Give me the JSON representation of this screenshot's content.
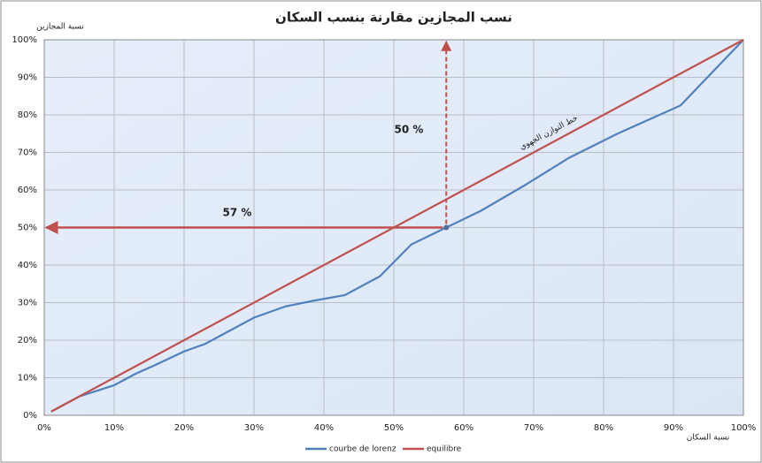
{
  "chart_data": {
    "type": "line",
    "title": "نسب المجازين مقارنة بنسب السكان",
    "y_label": "نسبة المجازين",
    "x_label": "نسبة السكان",
    "series": [
      {
        "name": "courbe de lorenz",
        "color": "#4f81bd",
        "x": [
          1,
          5,
          10,
          13,
          16,
          20,
          23,
          26,
          30,
          34.5,
          38.5,
          43,
          48,
          52.5,
          57.5,
          62.5,
          68.5,
          75,
          82,
          91,
          100
        ],
        "values": [
          1,
          5,
          8,
          11,
          13.5,
          17,
          19,
          22,
          26,
          29,
          30.5,
          32,
          37,
          45.5,
          50,
          54.5,
          61,
          68.5,
          75,
          82.5,
          100
        ]
      },
      {
        "name": "equilibre",
        "color": "#c0504d",
        "x": [
          1,
          100
        ],
        "values": [
          1,
          100
        ]
      }
    ],
    "annotations": [
      "50 %",
      "57 %",
      "خط التوازن الجهوي"
    ],
    "xlim": [
      0,
      100
    ],
    "ylim": [
      0,
      100
    ],
    "xticks": [
      {
        "value": 0,
        "label": "0%"
      },
      {
        "value": 10,
        "label": "10%"
      },
      {
        "value": 20,
        "label": "20%"
      },
      {
        "value": 30,
        "label": "30%"
      },
      {
        "value": 40,
        "label": "40%"
      },
      {
        "value": 50,
        "label": "50%"
      },
      {
        "value": 60,
        "label": "60%"
      },
      {
        "value": 70,
        "label": "70%"
      },
      {
        "value": 80,
        "label": "80%"
      },
      {
        "value": 90,
        "label": "90%"
      },
      {
        "value": 100,
        "label": "100%"
      }
    ],
    "yticks": [
      {
        "value": 0,
        "label": "0%"
      },
      {
        "value": 10,
        "label": "10%"
      },
      {
        "value": 20,
        "label": "20%"
      },
      {
        "value": 30,
        "label": "30%"
      },
      {
        "value": 40,
        "label": "40%"
      },
      {
        "value": 50,
        "label": "50%"
      },
      {
        "value": 60,
        "label": "60%"
      },
      {
        "value": 70,
        "label": "70%"
      },
      {
        "value": 80,
        "label": "80%"
      },
      {
        "value": 90,
        "label": "90%"
      },
      {
        "value": 100,
        "label": "100%"
      }
    ],
    "grid": true,
    "legend": "bottom"
  }
}
